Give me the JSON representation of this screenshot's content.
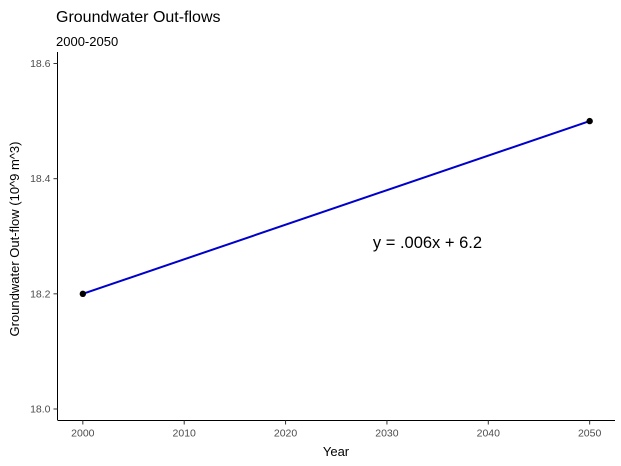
{
  "chart_data": {
    "type": "line",
    "title": "Groundwater Out-flows",
    "subtitle": "2000-2050",
    "xlabel": "Year",
    "ylabel": "Groundwater Out-flow (10^9 m^3)",
    "xlim": [
      1997.5,
      2052.5
    ],
    "ylim": [
      17.98,
      18.62
    ],
    "x_ticks": [
      2000,
      2010,
      2020,
      2030,
      2040,
      2050
    ],
    "y_ticks": [
      18.0,
      18.2,
      18.4,
      18.6
    ],
    "y_tick_labels": [
      "18.0",
      "18.2",
      "18.4",
      "18.6"
    ],
    "grid": false,
    "series": [
      {
        "x": [
          2000,
          2050
        ],
        "y": [
          18.2,
          18.5
        ],
        "color": "#0000cc",
        "marker_color": "#000000"
      }
    ],
    "annotation": {
      "text": "y = .006x + 6.2",
      "x": 2034,
      "y": 18.29
    }
  }
}
